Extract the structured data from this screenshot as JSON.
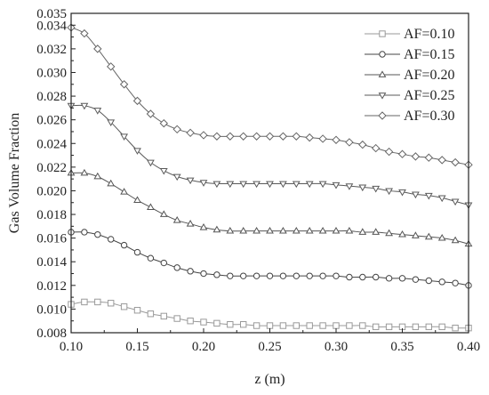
{
  "chart_data": {
    "type": "line",
    "xlabel": "z (m)",
    "ylabel": "Gas Volume Fraction",
    "xlim": [
      0.1,
      0.4
    ],
    "ylim": [
      0.008,
      0.035
    ],
    "xticks": [
      "0.10",
      "0.15",
      "0.20",
      "0.25",
      "0.30",
      "0.35",
      "0.40"
    ],
    "yticks": [
      "0.008",
      "0.010",
      "0.012",
      "0.014",
      "0.016",
      "0.018",
      "0.020",
      "0.022",
      "0.024",
      "0.026",
      "0.028",
      "0.030",
      "0.032",
      "0.034",
      "0.035"
    ],
    "grid": false,
    "legend_position": "top-right",
    "x": [
      0.1,
      0.11,
      0.12,
      0.13,
      0.14,
      0.15,
      0.16,
      0.17,
      0.18,
      0.19,
      0.2,
      0.21,
      0.22,
      0.23,
      0.24,
      0.25,
      0.26,
      0.27,
      0.28,
      0.29,
      0.3,
      0.31,
      0.32,
      0.33,
      0.34,
      0.35,
      0.36,
      0.37,
      0.38,
      0.39,
      0.4
    ],
    "series": [
      {
        "name": "AF=0.10",
        "marker": "square",
        "values": [
          0.0104,
          0.0106,
          0.0106,
          0.0105,
          0.0102,
          0.0099,
          0.0096,
          0.0094,
          0.0092,
          0.009,
          0.0089,
          0.0088,
          0.0087,
          0.0087,
          0.0086,
          0.0086,
          0.0086,
          0.0086,
          0.0086,
          0.0086,
          0.0086,
          0.0086,
          0.0086,
          0.0085,
          0.0085,
          0.0085,
          0.0085,
          0.0085,
          0.0085,
          0.0084,
          0.0084
        ]
      },
      {
        "name": "AF=0.15",
        "marker": "circle",
        "values": [
          0.0165,
          0.0165,
          0.0163,
          0.0159,
          0.0154,
          0.0148,
          0.0143,
          0.0139,
          0.0135,
          0.0132,
          0.013,
          0.0129,
          0.0128,
          0.0128,
          0.0128,
          0.0128,
          0.0128,
          0.0128,
          0.0128,
          0.0128,
          0.0128,
          0.0127,
          0.0127,
          0.0127,
          0.0126,
          0.0126,
          0.0125,
          0.0124,
          0.0123,
          0.0122,
          0.012
        ]
      },
      {
        "name": "AF=0.20",
        "marker": "triangle-up",
        "values": [
          0.0215,
          0.0215,
          0.0212,
          0.0206,
          0.0199,
          0.0192,
          0.0186,
          0.018,
          0.0175,
          0.0172,
          0.0169,
          0.0167,
          0.0166,
          0.0166,
          0.0166,
          0.0166,
          0.0166,
          0.0166,
          0.0166,
          0.0166,
          0.0166,
          0.0166,
          0.0165,
          0.0165,
          0.0164,
          0.0163,
          0.0162,
          0.0161,
          0.016,
          0.0158,
          0.0155
        ]
      },
      {
        "name": "AF=0.25",
        "marker": "triangle-down",
        "values": [
          0.0272,
          0.0272,
          0.0268,
          0.0258,
          0.0246,
          0.0234,
          0.0224,
          0.0217,
          0.0212,
          0.0209,
          0.0207,
          0.0206,
          0.0206,
          0.0206,
          0.0206,
          0.0206,
          0.0206,
          0.0206,
          0.0206,
          0.0206,
          0.0205,
          0.0204,
          0.0203,
          0.0202,
          0.02,
          0.0199,
          0.0197,
          0.0196,
          0.0194,
          0.0191,
          0.0188
        ]
      },
      {
        "name": "AF=0.30",
        "marker": "diamond",
        "values": [
          0.0338,
          0.0333,
          0.032,
          0.0305,
          0.029,
          0.0276,
          0.0265,
          0.0257,
          0.0252,
          0.0249,
          0.0247,
          0.0246,
          0.0246,
          0.0246,
          0.0246,
          0.0246,
          0.0246,
          0.0246,
          0.0245,
          0.0244,
          0.0243,
          0.0241,
          0.0239,
          0.0236,
          0.0233,
          0.0231,
          0.0229,
          0.0228,
          0.0226,
          0.0224,
          0.0222
        ]
      }
    ]
  },
  "colors": {
    "axis": "#222222",
    "series": [
      "#9a9a9a",
      "#444444",
      "#555555",
      "#5a5a5a",
      "#666666"
    ]
  }
}
